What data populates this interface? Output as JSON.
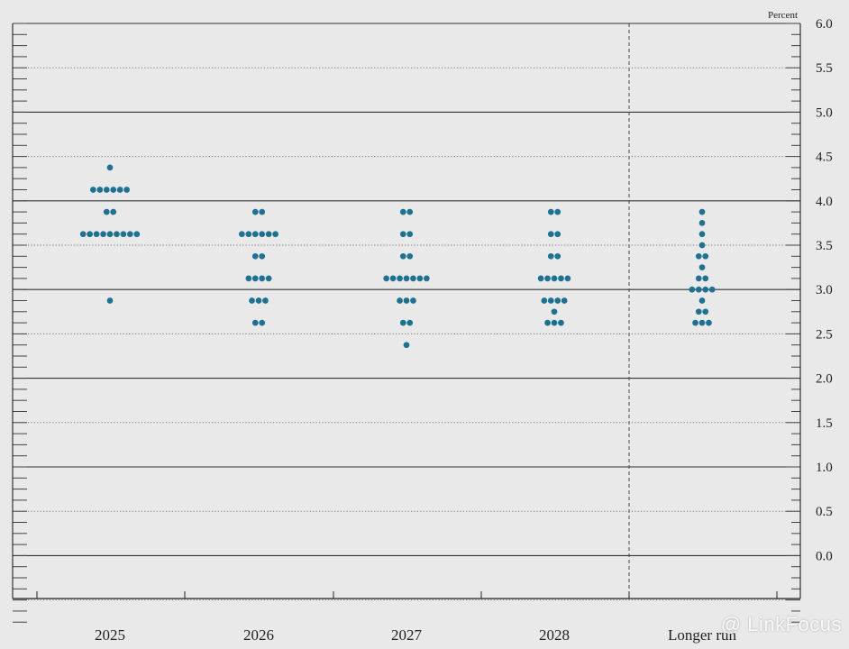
{
  "chart_data": {
    "type": "scatter",
    "subtype": "dot-plot",
    "unit_label": "Percent",
    "categories": [
      "2025",
      "2026",
      "2027",
      "2028",
      "Longer run"
    ],
    "ylim": [
      -0.75,
      6.0
    ],
    "yticks": [
      "0.0",
      "0.5",
      "1.0",
      "1.5",
      "2.0",
      "2.5",
      "3.0",
      "3.5",
      "4.0",
      "4.5",
      "5.0",
      "5.5",
      "6.0"
    ],
    "tick_step": 0.125,
    "solid_gridlines": [
      0,
      1,
      2,
      3,
      4,
      5,
      6
    ],
    "longer_run_separator": true,
    "dot_color": "#1e7191",
    "series": [
      {
        "category": "2025",
        "points": [
          {
            "y": 4.375,
            "count": 1
          },
          {
            "y": 4.125,
            "count": 6
          },
          {
            "y": 3.875,
            "count": 2
          },
          {
            "y": 3.625,
            "count": 9
          },
          {
            "y": 2.875,
            "count": 1
          }
        ]
      },
      {
        "category": "2026",
        "points": [
          {
            "y": 3.875,
            "count": 2
          },
          {
            "y": 3.625,
            "count": 6
          },
          {
            "y": 3.375,
            "count": 2
          },
          {
            "y": 3.125,
            "count": 4
          },
          {
            "y": 2.875,
            "count": 3
          },
          {
            "y": 2.625,
            "count": 2
          }
        ]
      },
      {
        "category": "2027",
        "points": [
          {
            "y": 3.875,
            "count": 2
          },
          {
            "y": 3.625,
            "count": 2
          },
          {
            "y": 3.375,
            "count": 2
          },
          {
            "y": 3.125,
            "count": 7
          },
          {
            "y": 2.875,
            "count": 3
          },
          {
            "y": 2.625,
            "count": 2
          },
          {
            "y": 2.375,
            "count": 1
          }
        ]
      },
      {
        "category": "2028",
        "points": [
          {
            "y": 3.875,
            "count": 2
          },
          {
            "y": 3.625,
            "count": 2
          },
          {
            "y": 3.375,
            "count": 2
          },
          {
            "y": 3.125,
            "count": 5
          },
          {
            "y": 2.875,
            "count": 4
          },
          {
            "y": 2.75,
            "count": 1
          },
          {
            "y": 2.625,
            "count": 3
          }
        ]
      },
      {
        "category": "Longer run",
        "points": [
          {
            "y": 3.875,
            "count": 1
          },
          {
            "y": 3.75,
            "count": 1
          },
          {
            "y": 3.625,
            "count": 1
          },
          {
            "y": 3.5,
            "count": 1
          },
          {
            "y": 3.375,
            "count": 2
          },
          {
            "y": 3.25,
            "count": 1
          },
          {
            "y": 3.125,
            "count": 2
          },
          {
            "y": 3.0,
            "count": 4
          },
          {
            "y": 2.875,
            "count": 1
          },
          {
            "y": 2.75,
            "count": 2
          },
          {
            "y": 2.625,
            "count": 3
          }
        ]
      }
    ]
  },
  "watermark": "@ LinkFocus"
}
